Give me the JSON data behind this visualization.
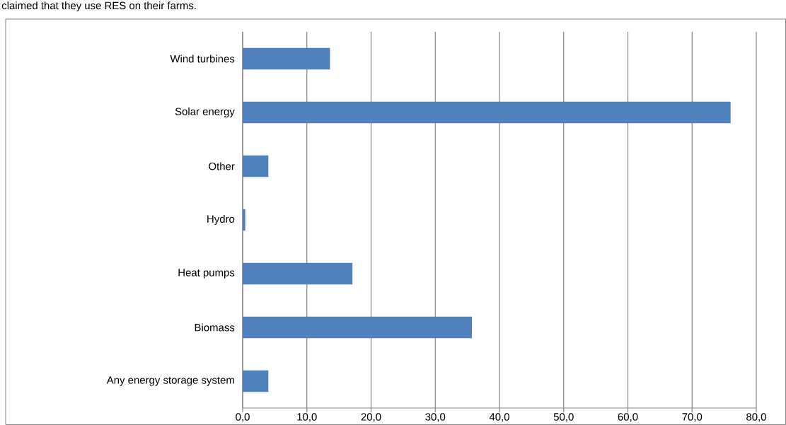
{
  "chart_data": {
    "type": "bar",
    "orientation": "horizontal",
    "annotations": [
      "claimed that they use RES on their farms."
    ],
    "categories": [
      "Wind turbines",
      "Solar energy",
      "Other",
      "Hydro",
      "Heat pumps",
      "Biomass",
      "Any energy storage system"
    ],
    "values": [
      13.6,
      76.0,
      4.0,
      0.4,
      17.1,
      35.7,
      4.0
    ],
    "color": "#4f81bd",
    "xlim": [
      0,
      80
    ],
    "xticks": [
      {
        "value": 0,
        "label": "0,0"
      },
      {
        "value": 10,
        "label": "10,0"
      },
      {
        "value": 20,
        "label": "20,0"
      },
      {
        "value": 30,
        "label": "30,0"
      },
      {
        "value": 40,
        "label": "40,0"
      },
      {
        "value": 50,
        "label": "50,0"
      },
      {
        "value": 60,
        "label": "60,0"
      },
      {
        "value": 70,
        "label": "70,0"
      },
      {
        "value": 80,
        "label": "80,0"
      }
    ],
    "grid": "x"
  }
}
